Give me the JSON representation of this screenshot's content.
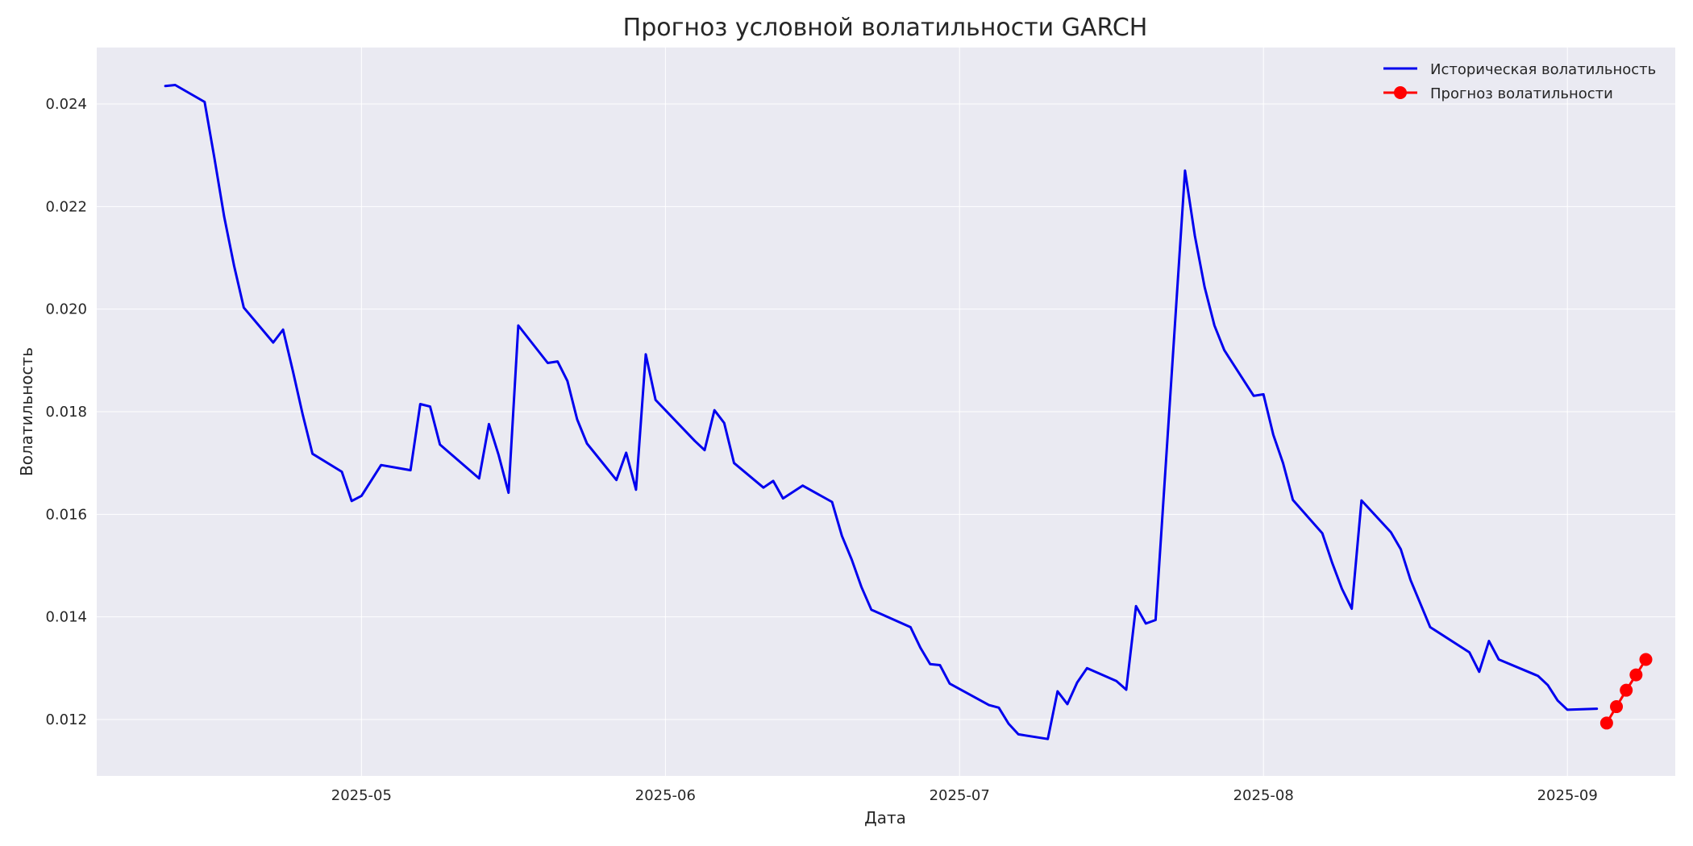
{
  "chart_data": {
    "type": "line",
    "title": "Прогноз условной волатильности GARCH",
    "xlabel": "Дата",
    "ylabel": "Волатильность",
    "x_tick_labels": [
      "2025-05",
      "2025-06",
      "2025-07",
      "2025-08",
      "2025-09"
    ],
    "x_ticks": [
      "2025-05-01",
      "2025-06-01",
      "2025-07-01",
      "2025-08-01",
      "2025-09-01"
    ],
    "xlim": [
      "2025-04-04",
      "2025-09-12"
    ],
    "y_ticks": [
      0.012,
      0.014,
      0.016,
      0.018,
      0.02,
      0.022,
      0.024
    ],
    "y_tick_labels": [
      "0.012",
      "0.014",
      "0.016",
      "0.018",
      "0.020",
      "0.022",
      "0.024"
    ],
    "ylim": [
      0.0109,
      0.0251
    ],
    "grid": true,
    "legend_position": "top-right",
    "colors": {
      "background": "#eaeaf2",
      "grid": "#ffffff",
      "historical": "#0000ee",
      "forecast": "#ff0000"
    },
    "series": [
      {
        "name": "Историческая волатильность",
        "color": "#0000ee",
        "marker": "none",
        "points": [
          [
            "2025-04-11",
            0.02435
          ],
          [
            "2025-04-12",
            0.02437
          ],
          [
            "2025-04-15",
            0.02404
          ],
          [
            "2025-04-16",
            0.02295
          ],
          [
            "2025-04-17",
            0.0218
          ],
          [
            "2025-04-18",
            0.02085
          ],
          [
            "2025-04-19",
            0.02003
          ],
          [
            "2025-04-22",
            0.01935
          ],
          [
            "2025-04-23",
            0.0196
          ],
          [
            "2025-04-24",
            0.0188
          ],
          [
            "2025-04-25",
            0.01795
          ],
          [
            "2025-04-26",
            0.01718
          ],
          [
            "2025-04-29",
            0.01683
          ],
          [
            "2025-04-30",
            0.01626
          ],
          [
            "2025-05-01",
            0.01636
          ],
          [
            "2025-05-03",
            0.01696
          ],
          [
            "2025-05-06",
            0.01686
          ],
          [
            "2025-05-07",
            0.01815
          ],
          [
            "2025-05-08",
            0.0181
          ],
          [
            "2025-05-09",
            0.01736
          ],
          [
            "2025-05-13",
            0.0167
          ],
          [
            "2025-05-14",
            0.01776
          ],
          [
            "2025-05-15",
            0.01715
          ],
          [
            "2025-05-16",
            0.01642
          ],
          [
            "2025-05-17",
            0.01968
          ],
          [
            "2025-05-20",
            0.01895
          ],
          [
            "2025-05-21",
            0.01898
          ],
          [
            "2025-05-22",
            0.0186
          ],
          [
            "2025-05-23",
            0.01785
          ],
          [
            "2025-05-24",
            0.01738
          ],
          [
            "2025-05-27",
            0.01667
          ],
          [
            "2025-05-28",
            0.0172
          ],
          [
            "2025-05-29",
            0.01648
          ],
          [
            "2025-05-30",
            0.01912
          ],
          [
            "2025-05-31",
            0.01823
          ],
          [
            "2025-06-04",
            0.01743
          ],
          [
            "2025-06-05",
            0.01725
          ],
          [
            "2025-06-06",
            0.01803
          ],
          [
            "2025-06-07",
            0.01778
          ],
          [
            "2025-06-08",
            0.017
          ],
          [
            "2025-06-11",
            0.01652
          ],
          [
            "2025-06-12",
            0.01665
          ],
          [
            "2025-06-13",
            0.01631
          ],
          [
            "2025-06-15",
            0.01656
          ],
          [
            "2025-06-18",
            0.01624
          ],
          [
            "2025-06-19",
            0.01558
          ],
          [
            "2025-06-20",
            0.01512
          ],
          [
            "2025-06-21",
            0.01458
          ],
          [
            "2025-06-22",
            0.01414
          ],
          [
            "2025-06-26",
            0.0138
          ],
          [
            "2025-06-27",
            0.0134
          ],
          [
            "2025-06-28",
            0.01308
          ],
          [
            "2025-06-29",
            0.01306
          ],
          [
            "2025-06-30",
            0.0127
          ],
          [
            "2025-07-04",
            0.01228
          ],
          [
            "2025-07-05",
            0.01223
          ],
          [
            "2025-07-06",
            0.01192
          ],
          [
            "2025-07-07",
            0.01171
          ],
          [
            "2025-07-10",
            0.01162
          ],
          [
            "2025-07-11",
            0.01255
          ],
          [
            "2025-07-12",
            0.0123
          ],
          [
            "2025-07-13",
            0.01272
          ],
          [
            "2025-07-14",
            0.013
          ],
          [
            "2025-07-17",
            0.01275
          ],
          [
            "2025-07-18",
            0.01258
          ],
          [
            "2025-07-19",
            0.01421
          ],
          [
            "2025-07-20",
            0.01387
          ],
          [
            "2025-07-21",
            0.01394
          ],
          [
            "2025-07-24",
            0.0227
          ],
          [
            "2025-07-25",
            0.02143
          ],
          [
            "2025-07-26",
            0.02043
          ],
          [
            "2025-07-27",
            0.01968
          ],
          [
            "2025-07-28",
            0.0192
          ],
          [
            "2025-07-31",
            0.01831
          ],
          [
            "2025-08-01",
            0.01834
          ],
          [
            "2025-08-02",
            0.01755
          ],
          [
            "2025-08-03",
            0.017
          ],
          [
            "2025-08-04",
            0.01628
          ],
          [
            "2025-08-07",
            0.01563
          ],
          [
            "2025-08-08",
            0.01506
          ],
          [
            "2025-08-09",
            0.01455
          ],
          [
            "2025-08-10",
            0.01416
          ],
          [
            "2025-08-11",
            0.01627
          ],
          [
            "2025-08-14",
            0.01565
          ],
          [
            "2025-08-15",
            0.01532
          ],
          [
            "2025-08-16",
            0.01472
          ],
          [
            "2025-08-18",
            0.0138
          ],
          [
            "2025-08-22",
            0.01331
          ],
          [
            "2025-08-23",
            0.01293
          ],
          [
            "2025-08-24",
            0.01353
          ],
          [
            "2025-08-25",
            0.01317
          ],
          [
            "2025-08-29",
            0.01285
          ],
          [
            "2025-08-30",
            0.01267
          ],
          [
            "2025-08-31",
            0.01237
          ],
          [
            "2025-09-01",
            0.01219
          ],
          [
            "2025-09-04",
            0.01221
          ]
        ]
      },
      {
        "name": "Прогноз волатильности",
        "color": "#ff0000",
        "marker": "circle",
        "points": [
          [
            "2025-09-05",
            0.01193
          ],
          [
            "2025-09-06",
            0.01225
          ],
          [
            "2025-09-07",
            0.01257
          ],
          [
            "2025-09-08",
            0.01287
          ],
          [
            "2025-09-09",
            0.01317
          ]
        ]
      }
    ]
  }
}
